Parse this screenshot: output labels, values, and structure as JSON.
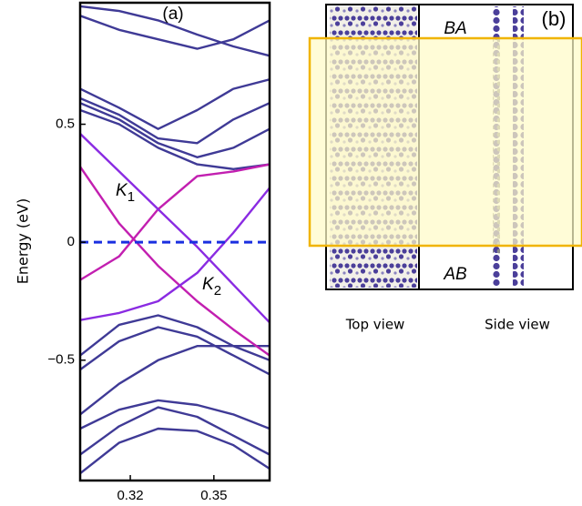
{
  "chart_data": {
    "type": "line",
    "panel_label": "(a)",
    "y_label": "Energy  (eV)",
    "x": [
      0.302,
      0.316,
      0.33,
      0.344,
      0.357,
      0.37
    ],
    "xlim": [
      0.302,
      0.37
    ],
    "xticks": [
      0.32,
      0.35
    ],
    "ylim": [
      -1.01,
      1.015
    ],
    "yticks": [
      0.5,
      0,
      {
        "value": -0.5,
        "label": "−0.5"
      }
    ],
    "hline": {
      "value": 0,
      "color": "#1a2fe0"
    },
    "series": [
      {
        "color": "#3f3a96",
        "values": [
          0.96,
          0.9,
          0.86,
          0.82,
          0.86,
          0.94
        ]
      },
      {
        "color": "#3f3a96",
        "values": [
          1.0,
          0.98,
          0.94,
          0.88,
          0.83,
          0.79
        ]
      },
      {
        "color": "#3f3a96",
        "values": [
          0.65,
          0.57,
          0.48,
          0.56,
          0.65,
          0.69
        ]
      },
      {
        "color": "#3f3a96",
        "values": [
          0.61,
          0.54,
          0.44,
          0.42,
          0.52,
          0.59
        ]
      },
      {
        "color": "#3f3a96",
        "values": [
          0.59,
          0.52,
          0.42,
          0.36,
          0.4,
          0.48
        ]
      },
      {
        "color": "#3f3a96",
        "values": [
          0.56,
          0.5,
          0.4,
          0.33,
          0.31,
          0.33
        ]
      },
      {
        "color": "#3f3a96",
        "values": [
          -0.48,
          -0.35,
          -0.31,
          -0.36,
          -0.44,
          -0.5
        ]
      },
      {
        "color": "#3f3a96",
        "values": [
          -0.54,
          -0.42,
          -0.36,
          -0.4,
          -0.48,
          -0.56
        ]
      },
      {
        "color": "#3f3a96",
        "values": [
          -0.73,
          -0.6,
          -0.5,
          -0.44,
          -0.44,
          -0.44
        ]
      },
      {
        "color": "#3f3a96",
        "values": [
          -0.79,
          -0.71,
          -0.67,
          -0.69,
          -0.73,
          -0.79
        ]
      },
      {
        "color": "#3f3a96",
        "values": [
          -0.98,
          -0.85,
          -0.79,
          -0.8,
          -0.86,
          -0.96
        ]
      },
      {
        "color": "#3f3a96",
        "values": [
          -0.9,
          -0.78,
          -0.7,
          -0.74,
          -0.82,
          -0.9
        ]
      },
      {
        "color": "#c21fb0",
        "values": [
          0.32,
          0.08,
          -0.1,
          -0.25,
          -0.37,
          -0.48
        ]
      },
      {
        "color": "#c21fb0",
        "values": [
          -0.16,
          -0.06,
          0.14,
          0.28,
          0.3,
          0.33
        ]
      },
      {
        "color": "#8a2be2",
        "values": [
          0.46,
          0.3,
          0.14,
          -0.02,
          -0.18,
          -0.34
        ]
      },
      {
        "color": "#8a2be2",
        "values": [
          -0.33,
          -0.3,
          -0.25,
          -0.13,
          0.04,
          0.23
        ]
      }
    ],
    "annotations": [
      {
        "text": "K",
        "sub": "1"
      },
      {
        "text": "K",
        "sub": "2"
      }
    ]
  },
  "panel_b": {
    "panel_label": "(b)",
    "top_label": "BA",
    "bottom_label": "AB",
    "captions": [
      "Top view",
      "Side view"
    ]
  }
}
